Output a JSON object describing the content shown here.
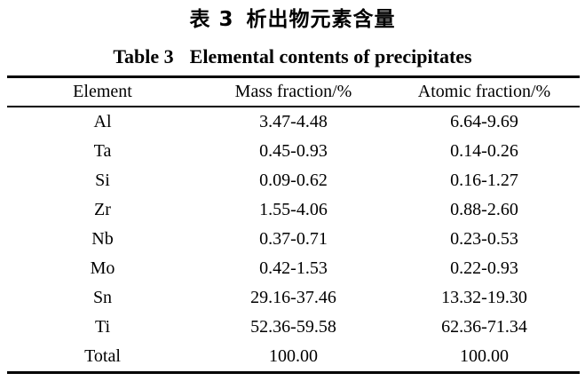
{
  "page": {
    "background_color": "#ffffff",
    "text_color": "#000000"
  },
  "titles": {
    "chinese_label": "表 3",
    "chinese_caption": "析出物元素含量",
    "english_label": "Table 3",
    "english_caption": "Elemental contents of precipitates"
  },
  "table": {
    "columns": [
      "Element",
      "Mass fraction/%",
      "Atomic fraction/%"
    ],
    "rows": [
      {
        "element": "Al",
        "mass": "3.47-4.48",
        "atomic": "6.64-9.69"
      },
      {
        "element": "Ta",
        "mass": "0.45-0.93",
        "atomic": "0.14-0.26"
      },
      {
        "element": "Si",
        "mass": "0.09-0.62",
        "atomic": "0.16-1.27"
      },
      {
        "element": "Zr",
        "mass": "1.55-4.06",
        "atomic": "0.88-2.60"
      },
      {
        "element": "Nb",
        "mass": "0.37-0.71",
        "atomic": "0.23-0.53"
      },
      {
        "element": "Mo",
        "mass": "0.42-1.53",
        "atomic": "0.22-0.93"
      },
      {
        "element": "Sn",
        "mass": "29.16-37.46",
        "atomic": "13.32-19.30"
      },
      {
        "element": "Ti",
        "mass": "52.36-59.58",
        "atomic": "62.36-71.34"
      },
      {
        "element": "Total",
        "mass": "100.00",
        "atomic": "100.00"
      }
    ]
  }
}
